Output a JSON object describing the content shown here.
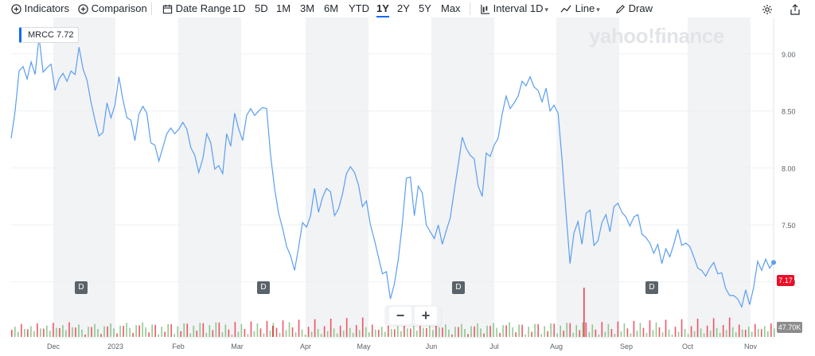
{
  "toolbar": {
    "indicators": "Indicators",
    "comparison": "Comparison",
    "date_range": "Date Range",
    "ranges": [
      "1D",
      "5D",
      "1M",
      "3M",
      "6M",
      "YTD",
      "1Y",
      "2Y",
      "5Y",
      "Max"
    ],
    "active_range": "1Y",
    "interval": "Interval",
    "interval_value": "1D",
    "chart_type": "Line",
    "draw": "Draw"
  },
  "watermark": "yahoo!finance",
  "ticker": {
    "symbol": "MRCC",
    "value": "7.72"
  },
  "current_price": "7.17",
  "volume_label": "47.70K",
  "dividend_marker": "D",
  "zoom": {
    "minus": "−",
    "plus": "+"
  },
  "colors": {
    "line": "#5b9ef0",
    "accent": "#0f69ff",
    "up": "#5fb55f",
    "down": "#eb0f29"
  },
  "chart_data": {
    "type": "line",
    "series": [
      {
        "name": "MRCC",
        "values": [
          8.26,
          8.5,
          8.85,
          8.89,
          8.78,
          8.93,
          8.82,
          9.15,
          8.84,
          8.88,
          8.91,
          8.68,
          8.78,
          8.83,
          8.76,
          8.85,
          8.82,
          9.06,
          8.87,
          8.77,
          8.58,
          8.42,
          8.28,
          8.31,
          8.57,
          8.44,
          8.55,
          8.8,
          8.6,
          8.44,
          8.42,
          8.24,
          8.47,
          8.54,
          8.48,
          8.22,
          8.2,
          8.06,
          8.18,
          8.3,
          8.35,
          8.3,
          8.34,
          8.4,
          8.34,
          8.18,
          8.11,
          7.96,
          8.08,
          8.3,
          8.22,
          7.99,
          8.02,
          7.95,
          8.3,
          8.19,
          8.48,
          8.34,
          8.24,
          8.46,
          8.52,
          8.46,
          8.5,
          8.53,
          8.52,
          8.11,
          7.82,
          7.6,
          7.47,
          7.31,
          7.23,
          7.1,
          7.3,
          7.52,
          7.48,
          7.58,
          7.82,
          7.61,
          7.74,
          7.82,
          7.79,
          7.58,
          7.64,
          7.77,
          7.95,
          8.01,
          7.96,
          7.85,
          7.66,
          7.71,
          7.5,
          7.37,
          7.22,
          7.07,
          7.09,
          6.85,
          6.98,
          7.2,
          7.51,
          7.91,
          7.92,
          7.58,
          7.84,
          7.78,
          7.5,
          7.44,
          7.38,
          7.5,
          7.33,
          7.45,
          7.56,
          7.8,
          8.03,
          8.27,
          8.17,
          8.11,
          8.08,
          7.84,
          7.75,
          8.13,
          8.1,
          8.2,
          8.26,
          8.47,
          8.63,
          8.52,
          8.57,
          8.63,
          8.76,
          8.72,
          8.8,
          8.71,
          8.68,
          8.58,
          8.7,
          8.5,
          8.55,
          8.48,
          8.07,
          7.6,
          7.16,
          7.43,
          7.53,
          7.33,
          7.6,
          7.63,
          7.32,
          7.36,
          7.52,
          7.59,
          7.44,
          7.66,
          7.69,
          7.61,
          7.57,
          7.49,
          7.57,
          7.59,
          7.42,
          7.39,
          7.34,
          7.25,
          7.33,
          7.16,
          7.29,
          7.22,
          7.33,
          7.46,
          7.32,
          7.34,
          7.31,
          7.22,
          7.12,
          7.1,
          7.05,
          7.12,
          7.17,
          7.07,
          7.08,
          6.94,
          6.88,
          6.88,
          6.85,
          6.78,
          6.93,
          6.8,
          6.95,
          7.18,
          7.1,
          7.2,
          7.12,
          7.17
        ]
      }
    ],
    "x_ticks": [
      "Dec",
      "2023",
      "Feb",
      "Mar",
      "Apr",
      "May",
      "Jun",
      "Jul",
      "Aug",
      "Sep",
      "Oct",
      "Nov"
    ],
    "y_ticks": [
      "9.00",
      "8.50",
      "8.00",
      "7.50",
      "7.00"
    ],
    "ylim": [
      6.67,
      9.32
    ],
    "grid": true
  }
}
